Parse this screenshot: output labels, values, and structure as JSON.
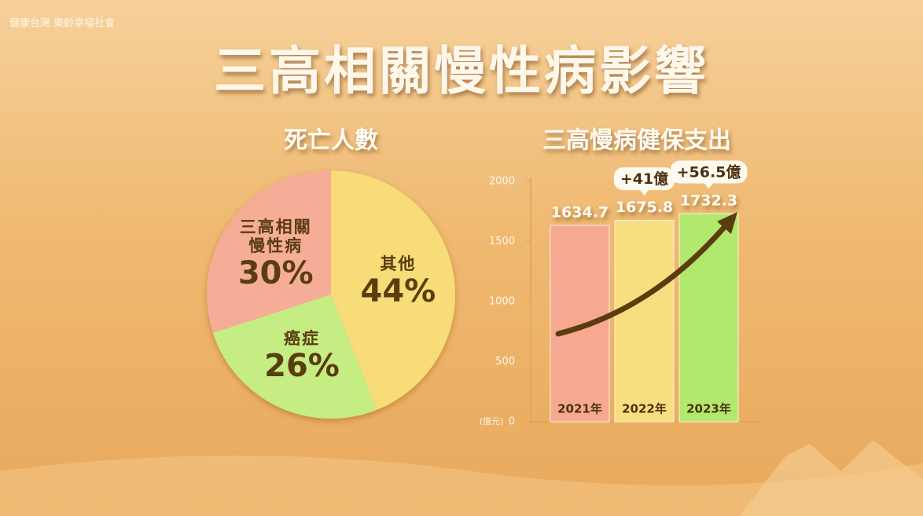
{
  "logo": "健康台灣 樂齡幸福社會",
  "title": "三高相關慢性病影響",
  "chart_data": [
    {
      "type": "pie",
      "title": "死亡人數",
      "categories": [
        "其他",
        "癌症",
        "三高相關慢性病"
      ],
      "values": [
        44,
        26,
        30
      ],
      "value_labels": [
        "44%",
        "26%",
        "30%"
      ],
      "colors": [
        "#f7dc78",
        "#c6ec84",
        "#f6ad98"
      ]
    },
    {
      "type": "bar",
      "title": "三高慢病健保支出",
      "categories": [
        "2021年",
        "2022年",
        "2023年"
      ],
      "values": [
        1634.7,
        1675.8,
        1732.3
      ],
      "colors": [
        "#f6a890",
        "#f8de80",
        "#b2e86e"
      ],
      "ylabel": "(億元)",
      "ylim": [
        0,
        2000
      ],
      "yticks": [
        0,
        500,
        1000,
        1500,
        2000
      ],
      "annotations": [
        "+41億",
        "+56.5億"
      ]
    }
  ]
}
